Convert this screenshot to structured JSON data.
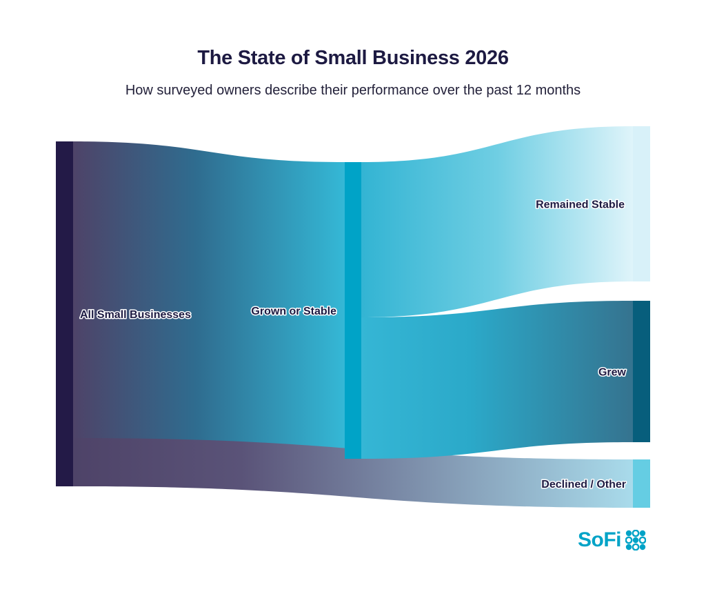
{
  "brand": {
    "name": "SoFi",
    "accent_color": "#00a3c7",
    "dots_icon": "sofi-dots-icon"
  },
  "chart_data": {
    "type": "sankey",
    "title": "The State of Small Business 2026",
    "subtitle": "How surveyed owners describe their performance over the past 12 months",
    "nodes": [
      {
        "id": "all",
        "label": "All Small Businesses",
        "color": "#231a47"
      },
      {
        "id": "grown_stable",
        "label": "Grown or Stable",
        "color": "#00a3c7"
      },
      {
        "id": "stable",
        "label": "Remained Stable",
        "color": "#d8f1f9"
      },
      {
        "id": "grew",
        "label": "Grew",
        "color": "#075e7c"
      },
      {
        "id": "declined",
        "label": "Declined / Other",
        "color": "#65cde3"
      }
    ],
    "links": [
      {
        "source": "all",
        "target": "grown_stable",
        "value": 86
      },
      {
        "source": "all",
        "target": "declined",
        "value": 14
      },
      {
        "source": "grown_stable",
        "target": "stable",
        "value": 45
      },
      {
        "source": "grown_stable",
        "target": "grew",
        "value": 41
      }
    ]
  }
}
